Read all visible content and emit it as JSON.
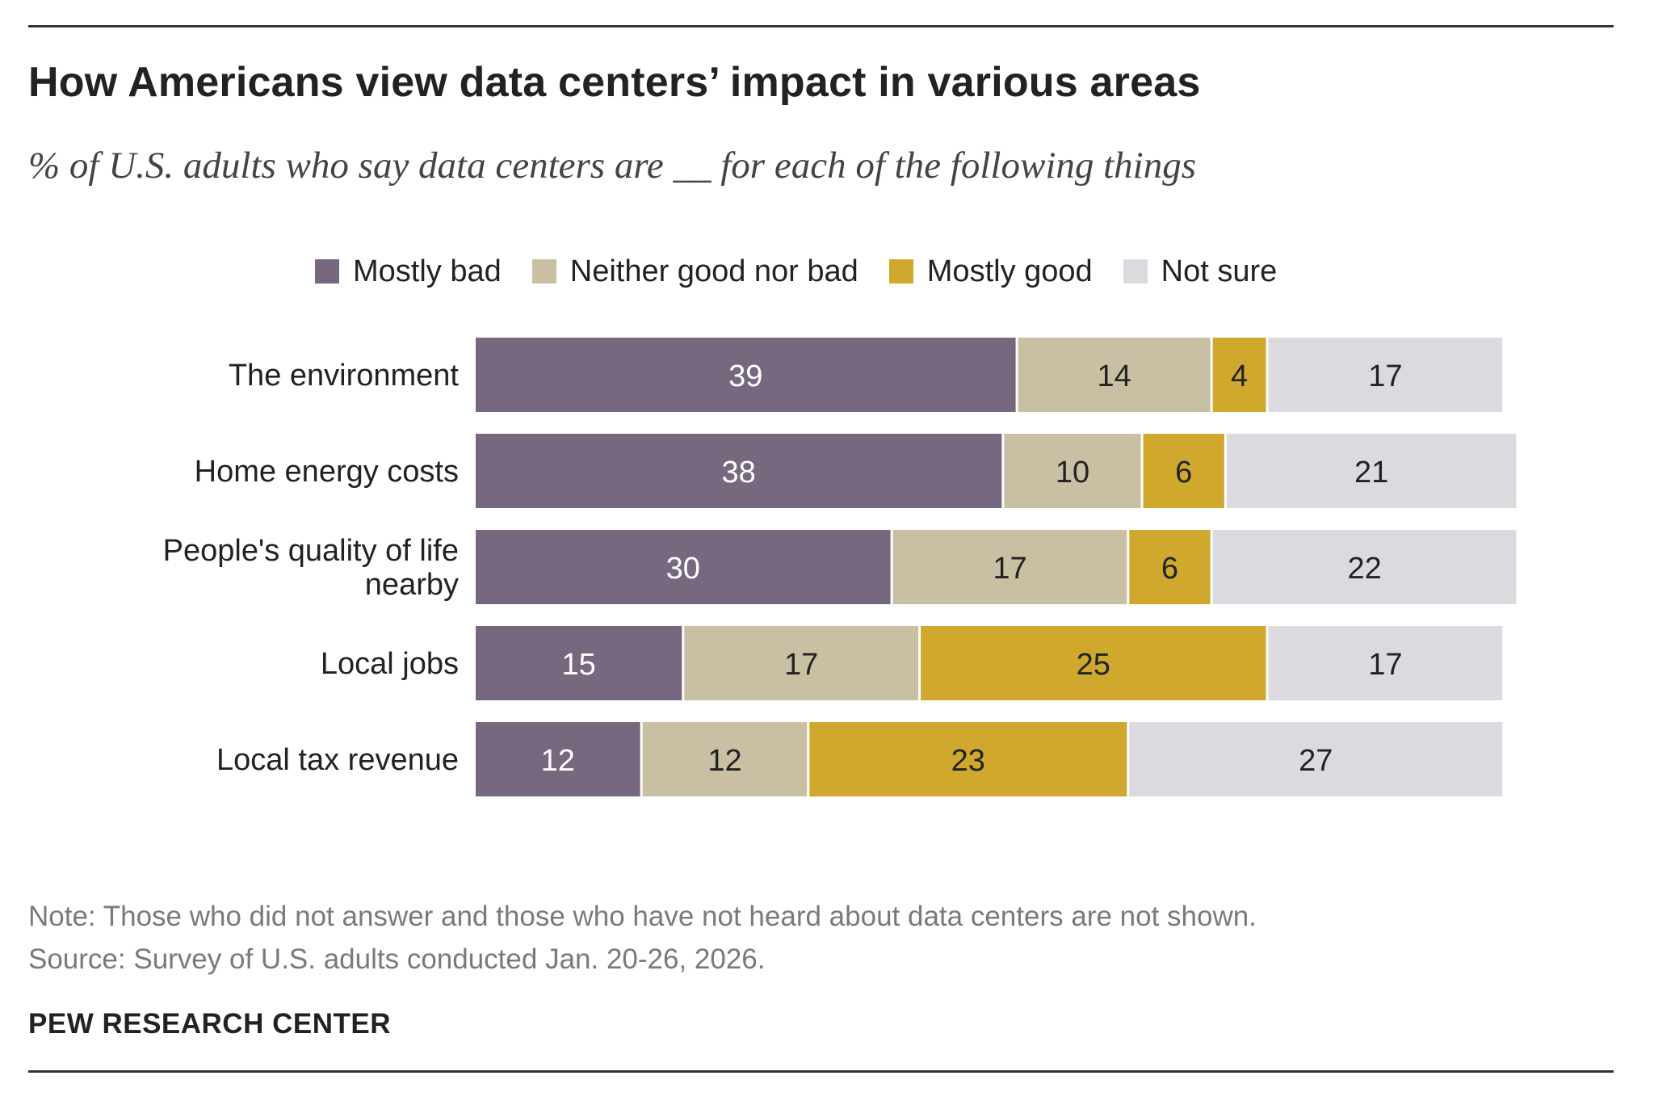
{
  "header": {
    "title": "How Americans view data centers’ impact in various areas",
    "subtitle": "% of U.S. adults who say data centers are __ for each of the following things"
  },
  "legend": [
    {
      "label": "Mostly bad",
      "color": "#76697f"
    },
    {
      "label": "Neither good nor bad",
      "color": "#c9c0a3"
    },
    {
      "label": "Mostly good",
      "color": "#d1a82e"
    },
    {
      "label": "Not sure",
      "color": "#dcdadf"
    }
  ],
  "chart_data": {
    "type": "bar",
    "orientation": "horizontal",
    "stacked": true,
    "categories": [
      [
        "The environment"
      ],
      [
        "Home energy costs"
      ],
      [
        "People's quality of life",
        "nearby"
      ],
      [
        "Local jobs"
      ],
      [
        "Local tax revenue"
      ]
    ],
    "series": [
      {
        "name": "Mostly bad",
        "color": "#76697f",
        "label_color": "#ffffff",
        "values": [
          39,
          38,
          30,
          15,
          12
        ]
      },
      {
        "name": "Neither good nor bad",
        "color": "#c9c0a3",
        "label_color": "#222222",
        "values": [
          14,
          10,
          17,
          17,
          12
        ]
      },
      {
        "name": "Mostly good",
        "color": "#d1a82e",
        "label_color": "#222222",
        "values": [
          4,
          6,
          6,
          25,
          23
        ]
      },
      {
        "name": "Not sure",
        "color": "#dcdadf",
        "label_color": "#222222",
        "values": [
          17,
          21,
          22,
          17,
          27
        ]
      }
    ],
    "title": "How Americans view data centers’ impact in various areas",
    "xlabel": "",
    "ylabel": "",
    "xlim": [
      0,
      76
    ],
    "grid": false,
    "legend_position": "top"
  },
  "footer": {
    "note": "Note: Those who did not answer and those who have not heard about data centers are not shown.",
    "source": "Source: Survey of U.S. adults conducted Jan. 20-26, 2026.",
    "brand": "PEW RESEARCH CENTER"
  }
}
